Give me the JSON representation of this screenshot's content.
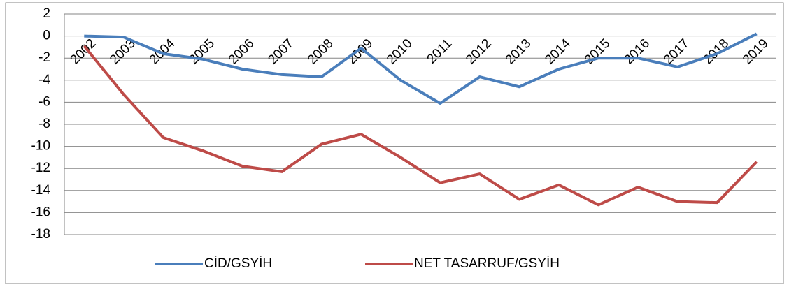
{
  "chart_data": {
    "type": "line",
    "categories": [
      "2002",
      "2003",
      "2004",
      "2005",
      "2006",
      "2007",
      "2008",
      "2009",
      "2010",
      "2011",
      "2012",
      "2013",
      "2014",
      "2015",
      "2016",
      "2017",
      "2018",
      "2019"
    ],
    "series": [
      {
        "name": "CİD/GSYİH",
        "color": "#4a7ebb",
        "values": [
          0,
          -0.1,
          -1.6,
          -2.1,
          -3.0,
          -3.5,
          -3.7,
          -1.1,
          -4.0,
          -6.1,
          -3.7,
          -4.6,
          -3.0,
          -2.0,
          -2.0,
          -2.8,
          -1.6,
          0.2
        ]
      },
      {
        "name": "NET TASARRUF/GSYİH",
        "color": "#be4b48",
        "values": [
          -0.9,
          -5.3,
          -9.2,
          -10.4,
          -11.8,
          -12.3,
          -9.8,
          -8.9,
          -11.0,
          -13.3,
          -12.5,
          -14.8,
          -13.5,
          -15.3,
          -13.7,
          -15.0,
          -15.1,
          -11.4
        ]
      }
    ],
    "ylim": [
      -18,
      2
    ],
    "yticks": [
      -18,
      -16,
      -14,
      -12,
      -10,
      -8,
      -6,
      -4,
      -2,
      0,
      2
    ],
    "grid": true,
    "legend": "bottom"
  }
}
